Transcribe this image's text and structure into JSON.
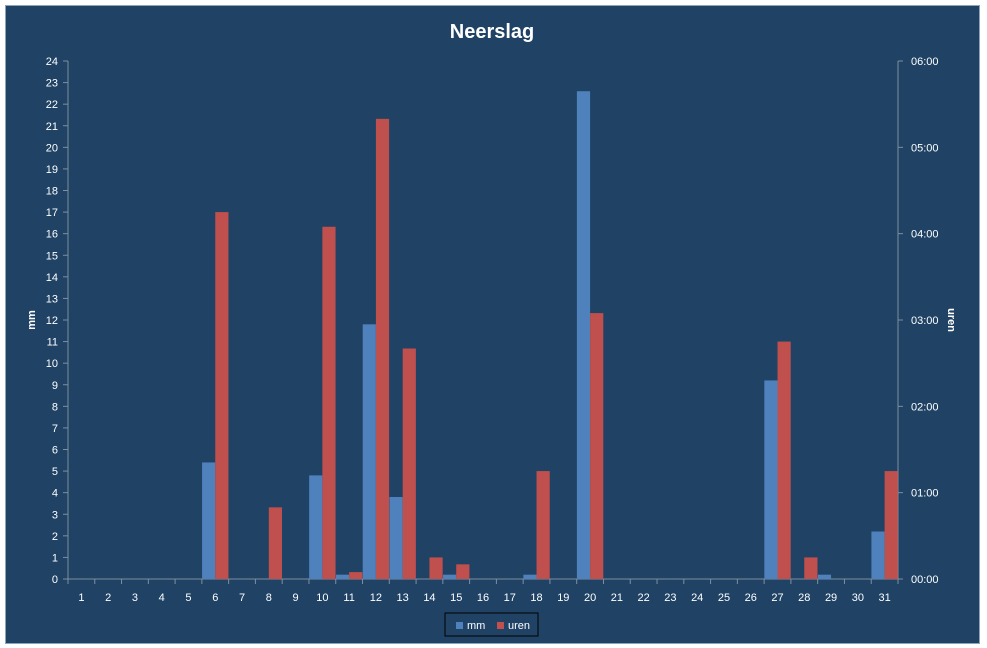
{
  "chart_data": {
    "type": "bar",
    "title": "Neerslag",
    "categories": [
      "1",
      "2",
      "3",
      "4",
      "5",
      "6",
      "7",
      "8",
      "9",
      "10",
      "11",
      "12",
      "13",
      "14",
      "15",
      "16",
      "17",
      "18",
      "19",
      "20",
      "21",
      "22",
      "23",
      "24",
      "25",
      "26",
      "27",
      "28",
      "29",
      "30",
      "31"
    ],
    "ylabel": "mm",
    "y2label": "uren",
    "ylim": [
      0,
      24
    ],
    "y2lim": [
      0,
      6
    ],
    "yticks": [
      "0",
      "1",
      "2",
      "3",
      "4",
      "5",
      "6",
      "7",
      "8",
      "9",
      "10",
      "11",
      "12",
      "13",
      "14",
      "15",
      "16",
      "17",
      "18",
      "19",
      "20",
      "21",
      "22",
      "23",
      "24"
    ],
    "y2ticks": [
      "00:00",
      "01:00",
      "02:00",
      "03:00",
      "04:00",
      "05:00",
      "06:00"
    ],
    "grid": false,
    "legend_position": "bottom",
    "series": [
      {
        "name": "mm",
        "axis": "left",
        "color": "#4f81bd",
        "values": [
          0,
          0,
          0,
          0,
          0,
          5.4,
          0,
          0,
          0,
          4.8,
          0.2,
          11.8,
          3.8,
          0,
          0.2,
          0,
          0,
          0.2,
          0,
          22.6,
          0,
          0,
          0,
          0,
          0,
          0,
          9.2,
          0,
          0.2,
          0,
          2.2
        ]
      },
      {
        "name": "uren",
        "axis": "right",
        "color": "#c0504d",
        "values_unit": "hours",
        "values": [
          0,
          0,
          0,
          0,
          0,
          4.25,
          0,
          0.83,
          0,
          4.08,
          0.08,
          5.33,
          2.67,
          0.25,
          0.17,
          0,
          0,
          1.25,
          0,
          3.08,
          0,
          0,
          0,
          0,
          0,
          0,
          2.75,
          0.25,
          0,
          0,
          1.25
        ]
      }
    ]
  }
}
